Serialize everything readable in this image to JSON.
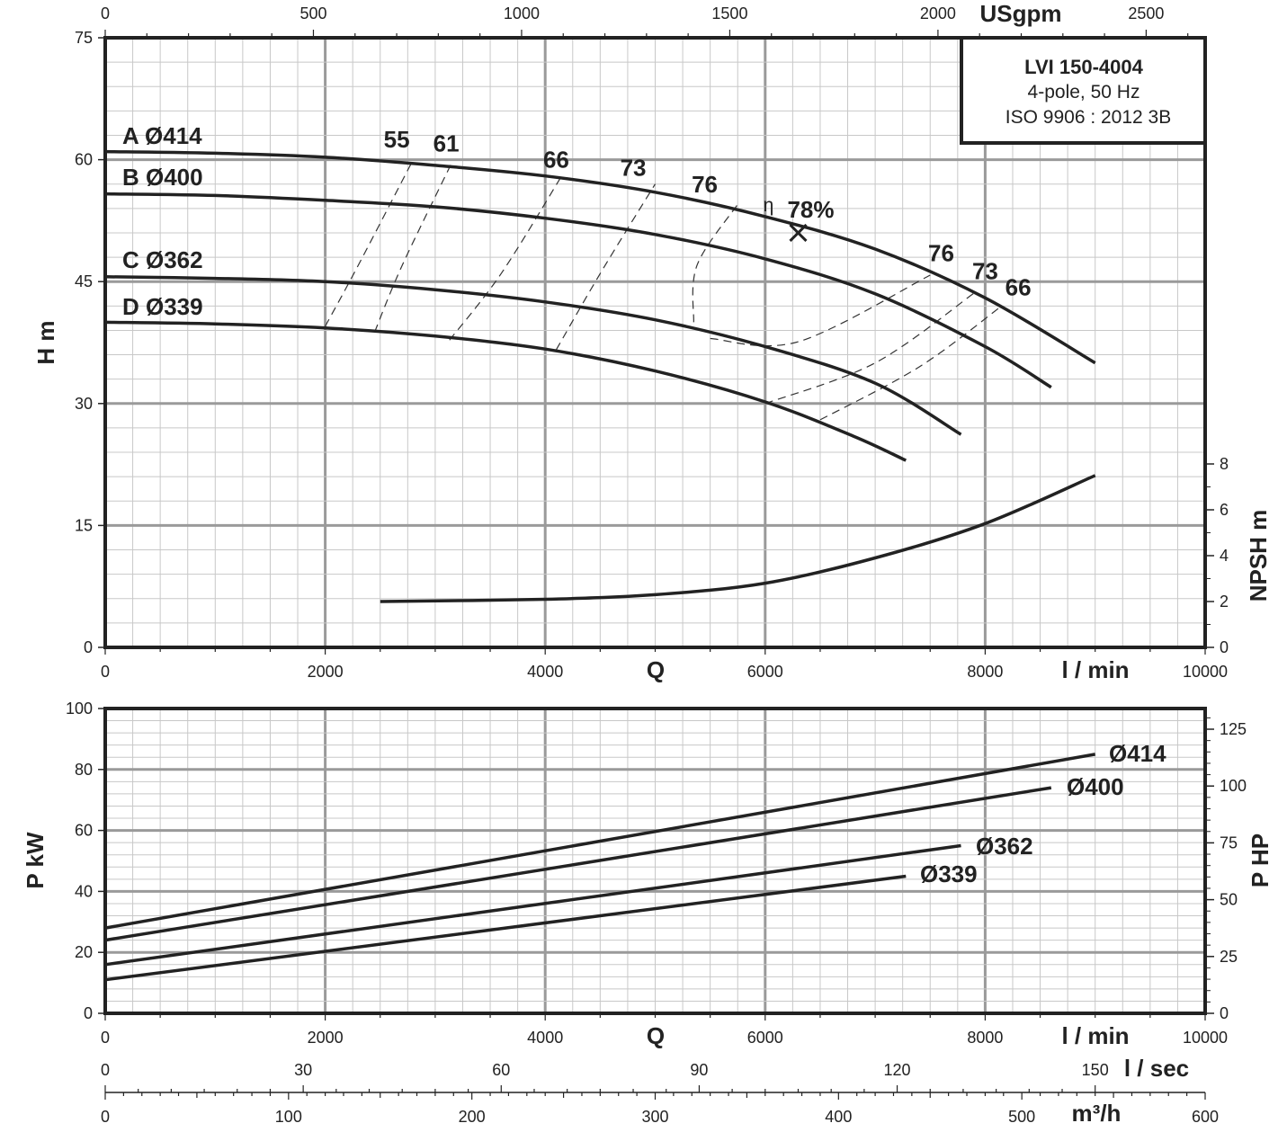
{
  "chart_data": [
    {
      "type": "line",
      "info": {
        "model": "LVI 150-4004",
        "line1": "4-pole, 50 Hz",
        "line2": "ISO 9906 : 2012 3B"
      },
      "xlabel": "Q",
      "xunit": "l / min",
      "xlim": [
        0,
        10000
      ],
      "x_ticks": [
        "0",
        "2000",
        "4000",
        "6000",
        "8000",
        "10000"
      ],
      "top_axis": {
        "label": "USgpm",
        "ticks": [
          "0",
          "500",
          "1000",
          "1500",
          "2000",
          "2500"
        ],
        "values": [
          0,
          500,
          1000,
          1500,
          2000,
          2500
        ]
      },
      "ylabel": "H m",
      "ylim": [
        0,
        75
      ],
      "y_ticks": [
        "0",
        "15",
        "30",
        "45",
        "60",
        "75"
      ],
      "y2label": "NPSH m",
      "y2_ticks": [
        "0",
        "2",
        "4",
        "6",
        "8"
      ],
      "series": [
        {
          "name": "A Ø414",
          "x": [
            0,
            1000,
            2000,
            3000,
            4000,
            5000,
            6000,
            7000,
            8000,
            9000
          ],
          "y": [
            61,
            60.8,
            60.3,
            59.3,
            58,
            56,
            53,
            49,
            43,
            35
          ]
        },
        {
          "name": "B Ø400",
          "x": [
            0,
            1000,
            2000,
            3000,
            4000,
            5000,
            6000,
            7000,
            8000,
            8600
          ],
          "y": [
            55.8,
            55.6,
            55,
            54.2,
            52.8,
            50.8,
            47.8,
            43.5,
            37,
            32
          ]
        },
        {
          "name": "C Ø362",
          "x": [
            0,
            1000,
            2000,
            3000,
            4000,
            5000,
            6000,
            7000,
            7780
          ],
          "y": [
            45.6,
            45.4,
            45,
            44,
            42.5,
            40.3,
            37,
            32.5,
            26.2
          ]
        },
        {
          "name": "D Ø339",
          "x": [
            0,
            1000,
            2000,
            3000,
            4000,
            5000,
            6000,
            6800,
            7280
          ],
          "y": [
            40,
            39.8,
            39.3,
            38.3,
            36.7,
            34,
            30.2,
            26,
            23
          ]
        }
      ],
      "npsh": {
        "x": [
          2500,
          4000,
          5000,
          6000,
          7000,
          8000,
          9000
        ],
        "y": [
          2,
          2.1,
          2.3,
          2.8,
          3.9,
          5.4,
          7.5
        ]
      },
      "efficiency": {
        "symbol": "η",
        "bep": {
          "label": "78%",
          "x": 6300,
          "y": 51
        },
        "labels": [
          {
            "text": "55",
            "x": 2650,
            "y": 61.5
          },
          {
            "text": "61",
            "x": 3100,
            "y": 61
          },
          {
            "text": "66",
            "x": 4100,
            "y": 59
          },
          {
            "text": "73",
            "x": 4800,
            "y": 58
          },
          {
            "text": "76",
            "x": 5450,
            "y": 56
          },
          {
            "text": "76",
            "x": 7600,
            "y": 47.5
          },
          {
            "text": "73",
            "x": 8000,
            "y": 45.3
          },
          {
            "text": "66",
            "x": 8300,
            "y": 43.3
          }
        ],
        "isolines": [
          {
            "x": [
              2000,
              2300,
              2800
            ],
            "y": [
              39.5,
              47,
              60
            ]
          },
          {
            "x": [
              2450,
              2700,
              3150
            ],
            "y": [
              38.8,
              47,
              59.6
            ]
          },
          {
            "x": [
              3130,
              3600,
              4150
            ],
            "y": [
              37.8,
              46,
              58
            ]
          },
          {
            "x": [
              4100,
              4500,
              5000
            ],
            "y": [
              36.6,
              46,
              57
            ]
          },
          {
            "x": [
              5350,
              5380,
              5750
            ],
            "y": [
              40,
              47,
              54.5
            ]
          },
          {
            "x": [
              5500,
              6300,
              7500
            ],
            "y": [
              38,
              37.6,
              45.8
            ]
          },
          {
            "x": [
              6000,
              7000,
              7900
            ],
            "y": [
              30,
              35,
              43.6
            ]
          },
          {
            "x": [
              6500,
              7400,
              8150
            ],
            "y": [
              28,
              34.5,
              42
            ]
          }
        ]
      }
    },
    {
      "type": "line",
      "xlabel": "Q",
      "xunit": "l / min",
      "xlim": [
        0,
        10000
      ],
      "x_ticks": [
        "0",
        "2000",
        "4000",
        "6000",
        "8000",
        "10000"
      ],
      "ylabel": "P kW",
      "ylim": [
        0,
        100
      ],
      "y_ticks": [
        "0",
        "20",
        "40",
        "60",
        "80",
        "100"
      ],
      "y2label": "P HP",
      "y2_ticks": [
        "0",
        "25",
        "50",
        "75",
        "100",
        "125"
      ],
      "series": [
        {
          "name": "Ø414",
          "x": [
            0,
            9000
          ],
          "y": [
            28,
            85
          ]
        },
        {
          "name": "Ø400",
          "x": [
            0,
            8600
          ],
          "y": [
            24,
            74
          ]
        },
        {
          "name": "Ø362",
          "x": [
            0,
            7780
          ],
          "y": [
            16,
            55
          ]
        },
        {
          "name": "Ø339",
          "x": [
            0,
            7280
          ],
          "y": [
            11,
            45
          ]
        }
      ],
      "extra_axes": [
        {
          "label": "l / sec",
          "ticks": [
            "0",
            "30",
            "60",
            "90",
            "120",
            "150"
          ],
          "values": [
            0,
            30,
            60,
            90,
            120,
            150
          ]
        },
        {
          "label": "m³/h",
          "ticks": [
            "0",
            "100",
            "200",
            "300",
            "400",
            "500",
            "600"
          ],
          "values": [
            0,
            100,
            200,
            300,
            400,
            500,
            600
          ]
        }
      ]
    }
  ]
}
